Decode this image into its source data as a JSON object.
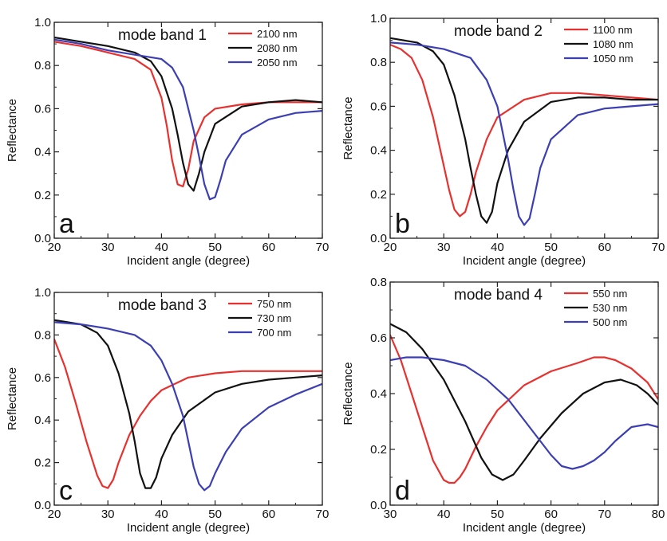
{
  "chart_data": [
    {
      "type": "line",
      "panel_letter": "a",
      "title": "mode band 1",
      "xlabel": "Incident angle (degree)",
      "ylabel": "Reflectance",
      "xlim": [
        20,
        70
      ],
      "ylim": [
        0.0,
        1.0
      ],
      "xticks": [
        20,
        30,
        40,
        50,
        60,
        70
      ],
      "xtick_labels": [
        "20",
        "30",
        "40",
        "50",
        "60",
        "70"
      ],
      "yticks": [
        0.0,
        0.2,
        0.4,
        0.6,
        0.8,
        1.0
      ],
      "ytick_labels": [
        "0.0",
        "0.2",
        "0.4",
        "0.6",
        "0.8",
        "1.0"
      ],
      "legend": "top-right",
      "series": [
        {
          "name": "2100 nm",
          "color": "#e8312f",
          "x": [
            20,
            25,
            30,
            35,
            38,
            40,
            41,
            42,
            43,
            44,
            45,
            46,
            48,
            50,
            55,
            60,
            65,
            70
          ],
          "y": [
            0.91,
            0.89,
            0.86,
            0.83,
            0.78,
            0.65,
            0.52,
            0.36,
            0.25,
            0.24,
            0.32,
            0.45,
            0.56,
            0.6,
            0.62,
            0.63,
            0.63,
            0.63
          ]
        },
        {
          "name": "2080 nm",
          "color": "#111111",
          "x": [
            20,
            25,
            30,
            35,
            38,
            40,
            42,
            43,
            44,
            45,
            46,
            47,
            48,
            50,
            55,
            60,
            65,
            70
          ],
          "y": [
            0.93,
            0.91,
            0.89,
            0.86,
            0.82,
            0.75,
            0.6,
            0.48,
            0.35,
            0.25,
            0.22,
            0.3,
            0.4,
            0.53,
            0.61,
            0.63,
            0.64,
            0.63
          ]
        },
        {
          "name": "2050 nm",
          "color": "#3c3fb4",
          "x": [
            20,
            25,
            30,
            35,
            40,
            42,
            44,
            46,
            47,
            48,
            49,
            50,
            51,
            52,
            55,
            60,
            65,
            70
          ],
          "y": [
            0.92,
            0.9,
            0.87,
            0.85,
            0.83,
            0.79,
            0.7,
            0.5,
            0.38,
            0.25,
            0.18,
            0.19,
            0.27,
            0.36,
            0.48,
            0.55,
            0.58,
            0.59
          ]
        }
      ]
    },
    {
      "type": "line",
      "panel_letter": "b",
      "title": "mode band 2",
      "xlabel": "Incident angle (degree)",
      "ylabel": "Reflectance",
      "xlim": [
        20,
        70
      ],
      "ylim": [
        0.0,
        1.0
      ],
      "xticks": [
        20,
        30,
        40,
        50,
        60,
        70
      ],
      "xtick_labels": [
        "20",
        "30",
        "40",
        "50",
        "60",
        "70"
      ],
      "yticks": [
        0.0,
        0.2,
        0.4,
        0.6,
        0.8,
        1.0
      ],
      "ytick_labels": [
        "0.0",
        "0.2",
        "0.4",
        "0.6",
        "0.8",
        "1.0"
      ],
      "legend": "top-right",
      "series": [
        {
          "name": "1100 nm",
          "color": "#e8312f",
          "x": [
            20,
            22,
            24,
            26,
            28,
            30,
            31,
            32,
            33,
            34,
            35,
            36,
            38,
            40,
            45,
            50,
            55,
            60,
            65,
            70
          ],
          "y": [
            0.88,
            0.86,
            0.82,
            0.72,
            0.55,
            0.33,
            0.22,
            0.13,
            0.1,
            0.12,
            0.2,
            0.3,
            0.45,
            0.55,
            0.63,
            0.66,
            0.66,
            0.65,
            0.64,
            0.63
          ]
        },
        {
          "name": "1080 nm",
          "color": "#111111",
          "x": [
            20,
            25,
            28,
            30,
            32,
            34,
            35,
            36,
            37,
            38,
            39,
            40,
            42,
            45,
            50,
            55,
            60,
            65,
            70
          ],
          "y": [
            0.91,
            0.89,
            0.85,
            0.79,
            0.65,
            0.45,
            0.32,
            0.2,
            0.1,
            0.07,
            0.12,
            0.25,
            0.4,
            0.53,
            0.62,
            0.64,
            0.64,
            0.63,
            0.63
          ]
        },
        {
          "name": "1050 nm",
          "color": "#3c3fb4",
          "x": [
            20,
            25,
            30,
            35,
            38,
            40,
            41,
            42,
            43,
            44,
            45,
            46,
            47,
            48,
            50,
            55,
            60,
            65,
            70
          ],
          "y": [
            0.89,
            0.88,
            0.86,
            0.82,
            0.72,
            0.6,
            0.48,
            0.36,
            0.22,
            0.1,
            0.06,
            0.09,
            0.2,
            0.32,
            0.45,
            0.56,
            0.59,
            0.6,
            0.61
          ]
        }
      ]
    },
    {
      "type": "line",
      "panel_letter": "c",
      "title": "mode band 3",
      "xlabel": "Incident angle (degree)",
      "ylabel": "Reflectance",
      "xlim": [
        20,
        70
      ],
      "ylim": [
        0.0,
        1.0
      ],
      "xticks": [
        20,
        30,
        40,
        50,
        60,
        70
      ],
      "xtick_labels": [
        "20",
        "30",
        "40",
        "50",
        "60",
        "70"
      ],
      "yticks": [
        0.0,
        0.2,
        0.4,
        0.6,
        0.8,
        1.0
      ],
      "ytick_labels": [
        "0.0",
        "0.2",
        "0.4",
        "0.6",
        "0.8",
        "1.0"
      ],
      "legend": "top-right",
      "series": [
        {
          "name": "750 nm",
          "color": "#e8312f",
          "x": [
            20,
            22,
            24,
            26,
            28,
            29,
            30,
            31,
            32,
            34,
            36,
            38,
            40,
            45,
            50,
            55,
            60,
            65,
            70
          ],
          "y": [
            0.78,
            0.65,
            0.48,
            0.3,
            0.14,
            0.09,
            0.08,
            0.12,
            0.2,
            0.33,
            0.42,
            0.49,
            0.54,
            0.6,
            0.62,
            0.63,
            0.63,
            0.63,
            0.63
          ]
        },
        {
          "name": "730 nm",
          "color": "#111111",
          "x": [
            20,
            25,
            28,
            30,
            32,
            34,
            35,
            36,
            37,
            38,
            39,
            40,
            42,
            45,
            50,
            55,
            60,
            65,
            70
          ],
          "y": [
            0.87,
            0.85,
            0.81,
            0.75,
            0.62,
            0.43,
            0.3,
            0.15,
            0.08,
            0.08,
            0.13,
            0.22,
            0.33,
            0.44,
            0.53,
            0.57,
            0.59,
            0.6,
            0.61
          ]
        },
        {
          "name": "700 nm",
          "color": "#3c3fb4",
          "x": [
            20,
            25,
            30,
            35,
            38,
            40,
            42,
            44,
            45,
            46,
            47,
            48,
            49,
            50,
            52,
            55,
            60,
            65,
            70
          ],
          "y": [
            0.86,
            0.85,
            0.83,
            0.8,
            0.75,
            0.68,
            0.57,
            0.42,
            0.3,
            0.18,
            0.1,
            0.07,
            0.09,
            0.15,
            0.25,
            0.36,
            0.46,
            0.52,
            0.57
          ]
        }
      ]
    },
    {
      "type": "line",
      "panel_letter": "d",
      "title": "mode band 4",
      "xlabel": "Incident angle (degree)",
      "ylabel": "Reflectance",
      "xlim": [
        30,
        80
      ],
      "ylim": [
        0.0,
        0.8
      ],
      "xticks": [
        30,
        40,
        50,
        60,
        70,
        80
      ],
      "xtick_labels": [
        "30",
        "40",
        "50",
        "60",
        "70",
        "80"
      ],
      "yticks": [
        0.0,
        0.2,
        0.4,
        0.6,
        0.8
      ],
      "ytick_labels": [
        "0.0",
        "0.2",
        "0.4",
        "0.6",
        "0.8"
      ],
      "legend": "top-right",
      "series": [
        {
          "name": "550 nm",
          "color": "#e8312f",
          "x": [
            30,
            32,
            34,
            36,
            38,
            40,
            41,
            42,
            43,
            44,
            46,
            48,
            50,
            55,
            60,
            65,
            68,
            70,
            72,
            75,
            78,
            80
          ],
          "y": [
            0.61,
            0.52,
            0.4,
            0.28,
            0.16,
            0.09,
            0.08,
            0.08,
            0.1,
            0.13,
            0.21,
            0.28,
            0.34,
            0.43,
            0.48,
            0.51,
            0.53,
            0.53,
            0.52,
            0.49,
            0.44,
            0.38
          ]
        },
        {
          "name": "530 nm",
          "color": "#111111",
          "x": [
            30,
            33,
            36,
            40,
            44,
            47,
            49,
            51,
            53,
            55,
            58,
            62,
            66,
            70,
            73,
            76,
            78,
            80
          ],
          "y": [
            0.65,
            0.62,
            0.56,
            0.45,
            0.3,
            0.17,
            0.11,
            0.09,
            0.11,
            0.16,
            0.24,
            0.33,
            0.4,
            0.44,
            0.45,
            0.43,
            0.4,
            0.36
          ]
        },
        {
          "name": "500 nm",
          "color": "#3c3fb4",
          "x": [
            30,
            33,
            36,
            40,
            44,
            48,
            52,
            56,
            60,
            62,
            64,
            66,
            68,
            70,
            72,
            75,
            78,
            80
          ],
          "y": [
            0.52,
            0.53,
            0.53,
            0.52,
            0.5,
            0.45,
            0.38,
            0.28,
            0.18,
            0.14,
            0.13,
            0.14,
            0.16,
            0.19,
            0.23,
            0.28,
            0.29,
            0.28
          ]
        }
      ]
    }
  ]
}
